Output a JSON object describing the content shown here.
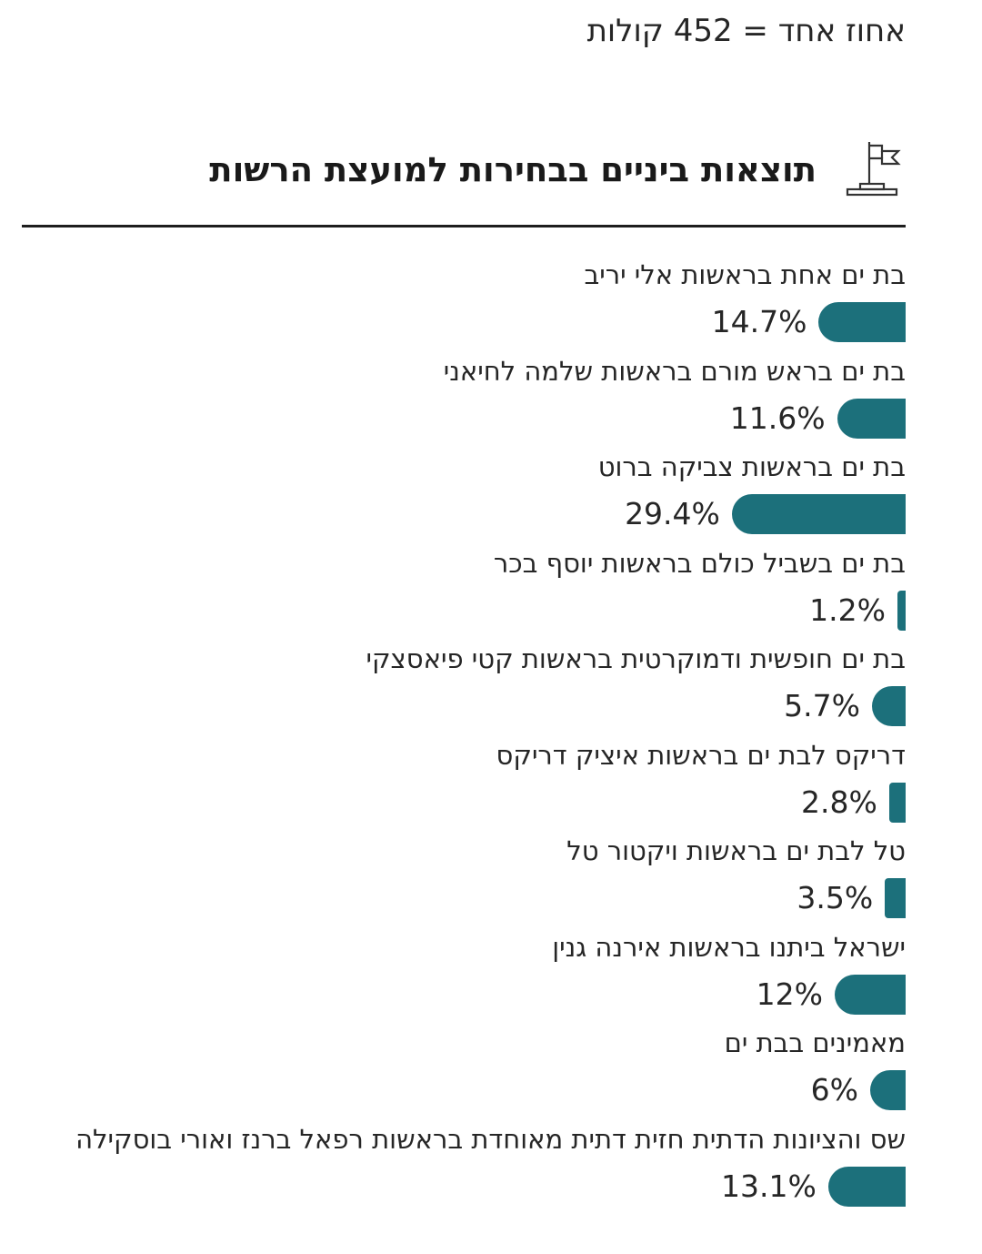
{
  "note": "אחוז אחד = 452 קולות",
  "title": "תוצאות ביניים בבחירות למועצת הרשות",
  "header_icon": "flag-podium-icon",
  "colors": {
    "bar": "#1c707b",
    "text": "#262626",
    "divider": "#1e1e1e"
  },
  "chart_data": {
    "type": "bar",
    "orientation": "horizontal",
    "title": "תוצאות ביניים בבחירות למועצת הרשות",
    "unit": "%",
    "categories": [
      "בת ים אחת בראשות אלי יריב",
      "בת ים בראש מורם בראשות שלמה לחיאני",
      "בת ים בראשות צביקה ברוט",
      "בת ים בשביל כולם בראשות יוסף בכר",
      "בת ים חופשית ודמוקרטית בראשות קטי פיאסצקי",
      "דריקס לבת ים בראשות איציק דריקס",
      "טל לבת ים בראשות ויקטור טל",
      "ישראל ביתנו בראשות אירנה גנין",
      "מאמינים בבת ים",
      "שס והציונות הדתית חזית דתית מאוחדת בראשות רפאל ברנז ואורי בוסקילה"
    ],
    "values": [
      14.7,
      11.6,
      29.4,
      1.2,
      5.7,
      2.8,
      3.5,
      12,
      6,
      13.1
    ],
    "value_labels": [
      "14.7%",
      "11.6%",
      "29.4%",
      "1.2%",
      "5.7%",
      "2.8%",
      "3.5%",
      "12%",
      "6%",
      "13.1%"
    ],
    "xlim": [
      0,
      100
    ],
    "grid": false,
    "legend": "none"
  }
}
